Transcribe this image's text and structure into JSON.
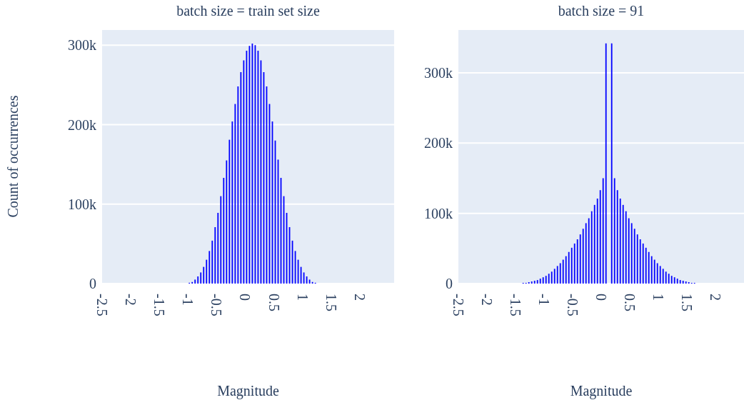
{
  "chart_data": [
    {
      "type": "histogram",
      "title": "batch size = train set size",
      "xlabel": "Magnitude",
      "ylabel": "Count of occurrences",
      "color": "#0000ff",
      "grid": "y",
      "bins": [
        -1,
        -0.95,
        -0.9,
        -0.85,
        -0.8,
        -0.75,
        -0.7,
        -0.65,
        -0.6,
        -0.55,
        -0.5,
        -0.45,
        -0.4,
        -0.35,
        -0.3,
        -0.25,
        -0.2,
        -0.15,
        -0.1,
        -0.05,
        0,
        0.05,
        0.1,
        0.15,
        0.2,
        0.25,
        0.3,
        0.35,
        0.4,
        0.45,
        0.5,
        0.55,
        0.6,
        0.65,
        0.7,
        0.75,
        0.8,
        0.85,
        0.9,
        0.95,
        1,
        1.05,
        1.1,
        1.15,
        1.2,
        1.25
      ],
      "values": [
        1000,
        2000,
        5000,
        9000,
        14000,
        21000,
        30000,
        41000,
        54000,
        71000,
        89000,
        110000,
        133000,
        155000,
        181000,
        204000,
        226000,
        248000,
        266000,
        281000,
        293000,
        299000,
        302000,
        300000,
        293000,
        281000,
        266000,
        248000,
        226000,
        204000,
        180000,
        156000,
        133000,
        110000,
        89000,
        71000,
        54000,
        41000,
        30000,
        21000,
        14000,
        9000,
        5000,
        2000,
        1000
      ],
      "xlim": [
        -2.5,
        2.6
      ],
      "xticks": [
        -2.5,
        -2,
        -1.5,
        -1,
        -0.5,
        0,
        0.5,
        1,
        1.5,
        2
      ],
      "ylim": [
        0,
        320000
      ],
      "yticks": [
        {
          "value": 0,
          "label": "0"
        },
        {
          "value": 100000,
          "label": "100k"
        },
        {
          "value": 200000,
          "label": "200k"
        },
        {
          "value": 300000,
          "label": "300k"
        }
      ]
    },
    {
      "type": "histogram",
      "title": "batch size = 91",
      "xlabel": "Magnitude",
      "color": "#0000ff",
      "grid": "y",
      "bins": [
        -1.39,
        -1.34,
        -1.29,
        -1.24,
        -1.19,
        -1.14,
        -1.09,
        -1.04,
        -0.99,
        -0.94,
        -0.89,
        -0.84,
        -0.79,
        -0.74,
        -0.69,
        -0.64,
        -0.59,
        -0.54,
        -0.49,
        -0.44,
        -0.39,
        -0.34,
        -0.29,
        -0.24,
        -0.19,
        -0.14,
        -0.09,
        -0.04,
        0.01,
        0.06,
        0.11,
        0.16,
        0.21,
        0.26,
        0.31,
        0.36,
        0.41,
        0.46,
        0.51,
        0.56,
        0.61,
        0.66,
        0.71,
        0.76,
        0.81,
        0.86,
        0.91,
        0.96,
        1.01,
        1.06,
        1.11,
        1.16,
        1.21,
        1.26,
        1.31,
        1.36,
        1.41,
        1.46,
        1.51,
        1.56,
        1.61,
        1.66
      ],
      "values": [
        1000,
        1000,
        2000,
        3000,
        4000,
        5000,
        7000,
        9000,
        11000,
        14000,
        17000,
        21000,
        25000,
        29000,
        34000,
        39000,
        45000,
        51000,
        57000,
        63000,
        70000,
        78000,
        86000,
        93000,
        103000,
        112000,
        121000,
        133000,
        150000,
        342000,
        0,
        342000,
        150000,
        133000,
        121000,
        112000,
        103000,
        93000,
        86000,
        78000,
        70000,
        63000,
        57000,
        51000,
        45000,
        39000,
        34000,
        29000,
        25000,
        21000,
        17000,
        14000,
        11000,
        9000,
        7000,
        5000,
        4000,
        3000,
        2000,
        1000,
        1000
      ],
      "xlim": [
        -2.5,
        2.5
      ],
      "xticks": [
        -2.5,
        -2,
        -1.5,
        -1,
        -0.5,
        0,
        0.5,
        1,
        1.5,
        2
      ],
      "ylim": [
        0,
        362000
      ],
      "yticks": [
        {
          "value": 0,
          "label": "0"
        },
        {
          "value": 100000,
          "label": "100k"
        },
        {
          "value": 200000,
          "label": "200k"
        },
        {
          "value": 300000,
          "label": "300k"
        }
      ]
    }
  ]
}
